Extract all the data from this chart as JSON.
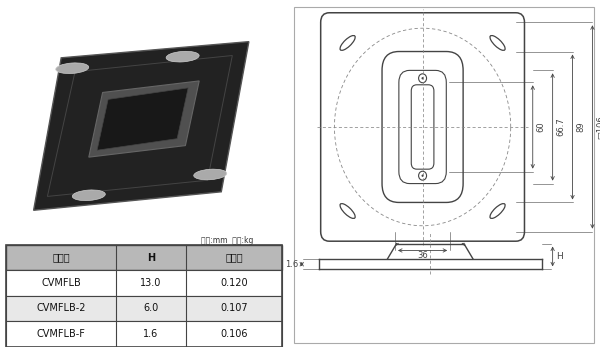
{
  "bg_color": "#ffffff",
  "table_header_bg": "#b8b8b8",
  "table_row1_bg": "#ffffff",
  "table_row2_bg": "#e8e8e8",
  "table_border_color": "#444444",
  "table_headers": [
    "品　番",
    "H",
    "重　量"
  ],
  "table_rows": [
    [
      "CVMFLB",
      "13.0",
      "0.120"
    ],
    [
      "CVMFLB-2",
      "6.0",
      "0.107"
    ],
    [
      "CVMFLB-F",
      "1.6",
      "0.106"
    ]
  ],
  "note_text": "寸法:mm  重量:kg",
  "dim_60": "60",
  "dim_66_7": "66.7",
  "dim_89": "89",
  "dim_106": "□106",
  "dim_36": "36",
  "dim_1_6": "1.6",
  "dim_H": "H",
  "line_color": "#444444",
  "dashed_color": "#888888",
  "light_line": "#aaaaaa"
}
